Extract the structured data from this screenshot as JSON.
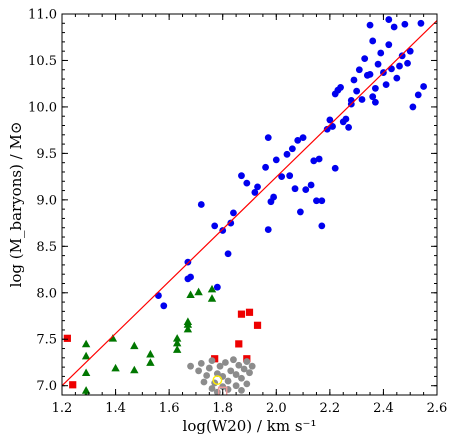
{
  "chart_data": {
    "type": "scatter",
    "xlabel": "log(W20) / km s⁻¹",
    "ylabel": "log (M_baryons) / M⊙",
    "xlim": [
      1.2,
      2.6
    ],
    "ylim": [
      6.9,
      11.0
    ],
    "x_ticks": [
      1.2,
      1.4,
      1.6,
      1.8,
      2.0,
      2.2,
      2.4,
      2.6
    ],
    "y_ticks": [
      7.0,
      7.5,
      8.0,
      8.5,
      9.0,
      9.5,
      10.0,
      10.5,
      11.0
    ],
    "x_tick_labels": [
      "1.2",
      "1.4",
      "1.6",
      "1.8",
      "2.0",
      "2.2",
      "2.4",
      "2.6"
    ],
    "y_tick_labels": [
      "7.0",
      "7.5",
      "8.0",
      "8.5",
      "9.0",
      "9.5",
      "10.0",
      "10.5",
      "11.0"
    ],
    "grid": false,
    "colors": {
      "blue": "#0000ee",
      "green": "#007700",
      "red": "#ee0000",
      "gray": "#8c8c8c",
      "fit_line": "#ff0000",
      "yellow_circle": "#ffee00",
      "pink_square": "#ee9999"
    },
    "fit_line": [
      [
        1.2,
        7.0
      ],
      [
        2.6,
        10.93
      ]
    ],
    "series": [
      {
        "marker": "circle",
        "color": "#0000ee",
        "points": [
          [
            1.56,
            7.97
          ],
          [
            1.58,
            7.86
          ],
          [
            1.67,
            8.15
          ],
          [
            1.68,
            8.17
          ],
          [
            1.67,
            8.33
          ],
          [
            1.72,
            8.95
          ],
          [
            1.77,
            8.72
          ],
          [
            1.78,
            8.06
          ],
          [
            1.8,
            8.67
          ],
          [
            1.82,
            8.42
          ],
          [
            1.83,
            8.75
          ],
          [
            1.84,
            8.86
          ],
          [
            1.87,
            9.26
          ],
          [
            1.89,
            9.18
          ],
          [
            1.92,
            9.08
          ],
          [
            1.93,
            9.14
          ],
          [
            1.96,
            9.35
          ],
          [
            1.97,
            9.67
          ],
          [
            1.98,
            8.98
          ],
          [
            1.99,
            9.03
          ],
          [
            1.97,
            8.68
          ],
          [
            2.0,
            9.43
          ],
          [
            2.02,
            9.25
          ],
          [
            2.04,
            9.49
          ],
          [
            2.05,
            9.26
          ],
          [
            2.06,
            9.55
          ],
          [
            2.07,
            9.12
          ],
          [
            2.08,
            9.64
          ],
          [
            2.09,
            8.87
          ],
          [
            2.1,
            9.67
          ],
          [
            2.11,
            9.11
          ],
          [
            2.13,
            9.16
          ],
          [
            2.14,
            9.42
          ],
          [
            2.15,
            8.99
          ],
          [
            2.16,
            9.44
          ],
          [
            2.17,
            8.72
          ],
          [
            2.17,
            8.99
          ],
          [
            2.19,
            9.76
          ],
          [
            2.2,
            9.86
          ],
          [
            2.21,
            9.79
          ],
          [
            2.22,
            9.34
          ],
          [
            2.22,
            10.14
          ],
          [
            2.23,
            10.18
          ],
          [
            2.24,
            10.21
          ],
          [
            2.25,
            9.84
          ],
          [
            2.26,
            9.87
          ],
          [
            2.27,
            9.78
          ],
          [
            2.28,
            10.07
          ],
          [
            2.29,
            10.29
          ],
          [
            2.3,
            10.17
          ],
          [
            2.31,
            10.4
          ],
          [
            2.32,
            10.08
          ],
          [
            2.33,
            10.52
          ],
          [
            2.34,
            10.34
          ],
          [
            2.35,
            10.35
          ],
          [
            2.36,
            10.11
          ],
          [
            2.36,
            10.71
          ],
          [
            2.37,
            10.2
          ],
          [
            2.38,
            10.46
          ],
          [
            2.39,
            10.58
          ],
          [
            2.4,
            10.37
          ],
          [
            2.41,
            10.24
          ],
          [
            2.42,
            10.67
          ],
          [
            2.42,
            10.94
          ],
          [
            2.43,
            10.41
          ],
          [
            2.44,
            10.86
          ],
          [
            2.45,
            10.31
          ],
          [
            2.46,
            10.44
          ],
          [
            2.47,
            10.55
          ],
          [
            2.48,
            10.89
          ],
          [
            2.49,
            10.47
          ],
          [
            2.5,
            10.6
          ],
          [
            2.51,
            10.0
          ],
          [
            2.53,
            10.13
          ],
          [
            2.54,
            10.9
          ],
          [
            2.55,
            10.22
          ],
          [
            2.35,
            10.88
          ],
          [
            2.37,
            10.05
          ],
          [
            2.28,
            10.03
          ]
        ]
      },
      {
        "marker": "triangle",
        "color": "#007700",
        "points": [
          [
            1.29,
            7.45
          ],
          [
            1.29,
            7.32
          ],
          [
            1.29,
            7.14
          ],
          [
            1.29,
            6.95
          ],
          [
            1.29,
            6.89
          ],
          [
            1.29,
            6.82
          ],
          [
            1.39,
            7.51
          ],
          [
            1.4,
            7.19
          ],
          [
            1.47,
            7.43
          ],
          [
            1.47,
            7.17
          ],
          [
            1.53,
            7.34
          ],
          [
            1.53,
            7.25
          ],
          [
            1.63,
            7.46
          ],
          [
            1.63,
            7.51
          ],
          [
            1.63,
            7.39
          ],
          [
            1.67,
            7.66
          ],
          [
            1.67,
            7.69
          ],
          [
            1.67,
            7.61
          ],
          [
            1.68,
            7.98
          ],
          [
            1.71,
            8.01
          ],
          [
            1.76,
            8.04
          ],
          [
            1.76,
            7.94
          ]
        ]
      },
      {
        "marker": "square",
        "color": "#ee0000",
        "points": [
          [
            1.22,
            7.51
          ],
          [
            1.24,
            7.01
          ],
          [
            1.77,
            7.29
          ],
          [
            1.86,
            7.45
          ],
          [
            1.87,
            7.77
          ],
          [
            1.9,
            7.79
          ],
          [
            1.93,
            7.65
          ],
          [
            1.89,
            7.29
          ]
        ]
      },
      {
        "marker": "circle",
        "color": "#8c8c8c",
        "points": [
          [
            1.68,
            7.21
          ],
          [
            1.71,
            7.16
          ],
          [
            1.72,
            7.24
          ],
          [
            1.74,
            7.11
          ],
          [
            1.75,
            7.19
          ],
          [
            1.76,
            7.27
          ],
          [
            1.77,
            7.03
          ],
          [
            1.78,
            7.13
          ],
          [
            1.79,
            7.21
          ],
          [
            1.8,
            6.99
          ],
          [
            1.8,
            7.1
          ],
          [
            1.81,
            7.25
          ],
          [
            1.82,
            7.05
          ],
          [
            1.83,
            7.16
          ],
          [
            1.84,
            7.28
          ],
          [
            1.85,
            7.0
          ],
          [
            1.85,
            7.12
          ],
          [
            1.86,
            7.22
          ],
          [
            1.87,
            7.08
          ],
          [
            1.88,
            7.18
          ],
          [
            1.89,
            7.02
          ],
          [
            1.89,
            7.26
          ],
          [
            1.9,
            7.14
          ],
          [
            1.91,
            7.21
          ],
          [
            1.76,
            6.97
          ],
          [
            1.78,
            6.93
          ],
          [
            1.82,
            6.96
          ],
          [
            1.73,
            7.04
          ],
          [
            1.87,
            6.95
          ]
        ]
      },
      {
        "marker": "open-circle",
        "color": "#ffee00",
        "points": [
          [
            1.78,
            7.06
          ]
        ]
      },
      {
        "marker": "open-square",
        "color": "#ee9999",
        "points": [
          [
            1.8,
            6.94
          ]
        ]
      }
    ]
  }
}
